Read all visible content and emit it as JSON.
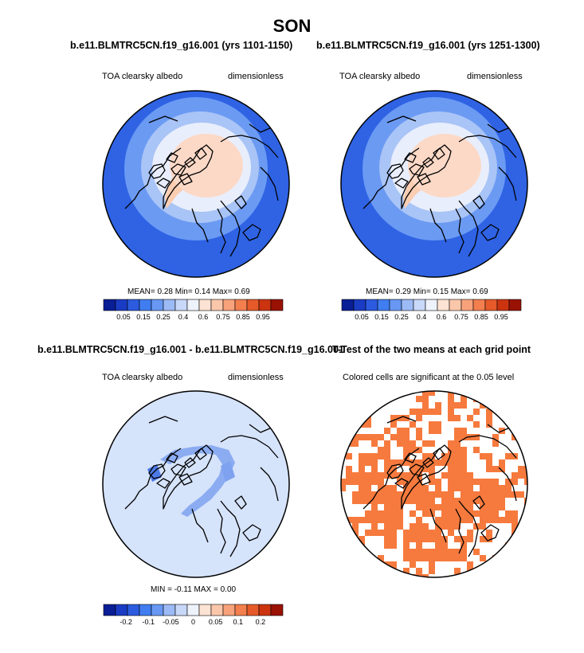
{
  "title": "SON",
  "panels": [
    {
      "case_title": "b.e11.BLMTRC5CN.f19_g16.001 (yrs 1101-1150)",
      "variable": "TOA clearsky albedo",
      "units": "dimensionless",
      "stats": "MEAN=   0.28  Min=   0.14  Max=   0.69",
      "colorbar": {
        "colors": [
          "#0a1e96",
          "#1a3cc4",
          "#2c5be0",
          "#3f7df0",
          "#6898f4",
          "#9cbaf6",
          "#c8d8f8",
          "#eef2fb",
          "#fde3d4",
          "#fbc7ab",
          "#f8a27c",
          "#f37f4e",
          "#e65a2a",
          "#cc3410",
          "#9a1204"
        ],
        "labels": [
          "0.05",
          "0.15",
          "0.25",
          "0.4",
          "0.6",
          "0.75",
          "0.85",
          "0.95"
        ]
      }
    },
    {
      "case_title": "b.e11.BLMTRC5CN.f19_g16.001 (yrs 1251-1300)",
      "variable": "TOA clearsky albedo",
      "units": "dimensionless",
      "stats": "MEAN=   0.29  Min=   0.15  Max=   0.69",
      "colorbar": {
        "colors": [
          "#0a1e96",
          "#1a3cc4",
          "#2c5be0",
          "#3f7df0",
          "#6898f4",
          "#9cbaf6",
          "#c8d8f8",
          "#eef2fb",
          "#fde3d4",
          "#fbc7ab",
          "#f8a27c",
          "#f37f4e",
          "#e65a2a",
          "#cc3410",
          "#9a1204"
        ],
        "labels": [
          "0.05",
          "0.15",
          "0.25",
          "0.4",
          "0.6",
          "0.75",
          "0.85",
          "0.95"
        ]
      }
    },
    {
      "case_title": "b.e11.BLMTRC5CN.f19_g16.001 - b.e11.BLMTRC5CN.f19_g16.001",
      "variable": "TOA clearsky albedo",
      "units": "dimensionless",
      "stats": "MIN =  -0.11  MAX =   0.00",
      "colorbar": {
        "colors": [
          "#0a1e96",
          "#1a3cc4",
          "#2c5be0",
          "#3f7df0",
          "#6898f4",
          "#9cbaf6",
          "#c8d8f8",
          "#eef2fb",
          "#fde3d4",
          "#fbc7ab",
          "#f8a27c",
          "#f37f4e",
          "#e65a2a",
          "#cc3410",
          "#9a1204"
        ],
        "labels": [
          "-0.2",
          "-0.1",
          "-0.05",
          "0",
          "0.05",
          "0.1",
          "0.2"
        ]
      }
    },
    {
      "case_title": "T-Test of the two means at each grid point",
      "variable": "Colored cells are significant at the 0.05 level"
    }
  ],
  "map_colors": {
    "ocean_blue": "#2f63e4",
    "mid_blue": "#6b9af3",
    "light_blue": "#a9c4f6",
    "pale": "#e9eefc",
    "greenland": "#fbcdb1",
    "arctic": "#fcd9c6",
    "diff_bg": "#d5e3fb",
    "diff_band": "#7ea2ef",
    "signif": "#f67a3e"
  }
}
